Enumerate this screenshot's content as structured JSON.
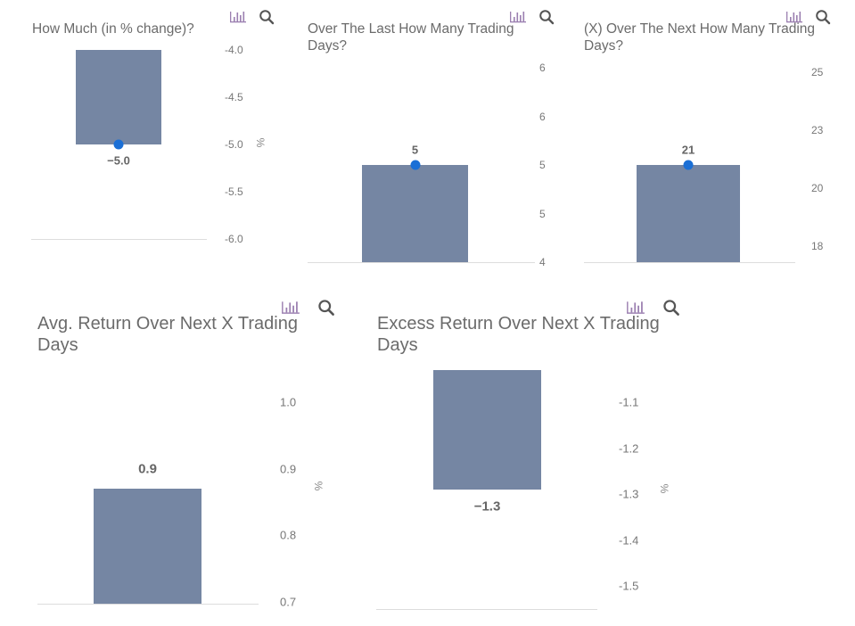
{
  "colors": {
    "bar": "#7586a3",
    "marker": "#1a6fd6",
    "icon_chart": "#9b7fb0",
    "icon_search": "#555555"
  },
  "icons": [
    "bar-chart-icon",
    "search-icon"
  ],
  "chart_data": [
    {
      "type": "bar",
      "title": "How Much (in % change)?",
      "unit": "%",
      "values": [
        -5.0
      ],
      "data_labels": [
        "-5.0"
      ],
      "ticks": [
        -4.0,
        -4.5,
        -5.0,
        -5.5,
        -6.0
      ],
      "tick_labels": [
        "-4.0",
        "-4.5",
        "-5.0",
        "-5.5",
        "-6.0"
      ],
      "ylim": [
        -6.0,
        -4.0
      ],
      "marker": true
    },
    {
      "type": "bar",
      "title": "Over The Last How Many Trading Days?",
      "unit": "",
      "values": [
        5
      ],
      "data_labels": [
        "5"
      ],
      "ticks": [
        6.0,
        5.5,
        5.0,
        4.5,
        4.0
      ],
      "tick_labels": [
        "6",
        "6",
        "5",
        "5",
        "4"
      ],
      "ylim": [
        4.0,
        6.0
      ],
      "marker": true
    },
    {
      "type": "bar",
      "title": "(X) Over The Next How Many Trading Days?",
      "unit": "",
      "values": [
        21
      ],
      "data_labels": [
        "21"
      ],
      "ticks": [
        25,
        22.5,
        20,
        17.5
      ],
      "tick_labels": [
        "25",
        "23",
        "20",
        "18"
      ],
      "ylim": [
        17.5,
        25
      ],
      "marker": true
    },
    {
      "type": "bar",
      "title": "Avg. Return Over Next X Trading Days",
      "unit": "%",
      "values": [
        0.87
      ],
      "data_labels": [
        "0.9"
      ],
      "ticks": [
        1.0,
        0.9,
        0.8,
        0.7
      ],
      "tick_labels": [
        "1.0",
        "0.9",
        "0.8",
        "0.7"
      ],
      "ylim": [
        0.7,
        1.0
      ],
      "marker": false
    },
    {
      "type": "bar",
      "title": "Excess Return Over Next X Trading Days",
      "unit": "%",
      "values": [
        -1.29
      ],
      "data_labels": [
        "-1.3"
      ],
      "ticks": [
        -1.1,
        -1.2,
        -1.3,
        -1.4,
        -1.5
      ],
      "tick_labels": [
        "-1.1",
        "-1.2",
        "-1.3",
        "-1.4",
        "-1.5"
      ],
      "ylim": [
        -1.5,
        -1.03
      ],
      "marker": false
    }
  ]
}
